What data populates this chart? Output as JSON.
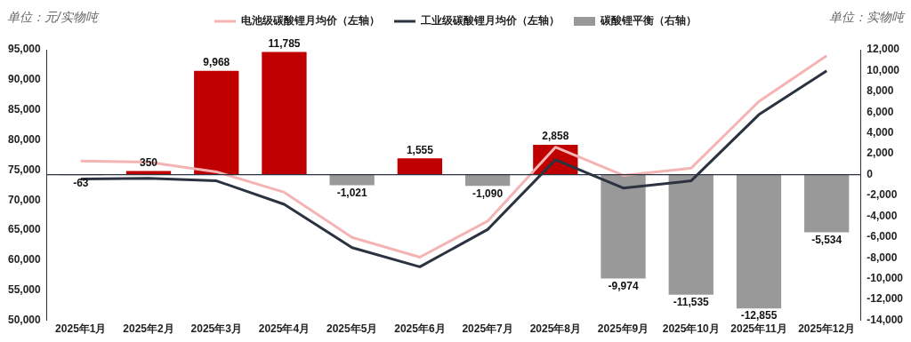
{
  "chart_data": {
    "type": "bar",
    "ylabel": "单位：元/实物吨",
    "y2label": "单位：实物吨",
    "categories": [
      "2025年1月",
      "2025年2月",
      "2025年3月",
      "2025年4月",
      "2025年5月",
      "2025年6月",
      "2025年7月",
      "2025年8月",
      "2025年9月",
      "2025年10月",
      "2025年11月",
      "2025年12月"
    ],
    "series": [
      {
        "name": "电池级碳酸锂月均价（左轴）",
        "type": "line",
        "axis": "y",
        "color": "#f4b4b4",
        "values": [
          76500,
          76300,
          74700,
          71300,
          63800,
          60500,
          66500,
          78800,
          74100,
          75300,
          86400,
          94000
        ]
      },
      {
        "name": "工业级碳酸锂月均价（左轴）",
        "type": "line",
        "axis": "y",
        "color": "#2b3340",
        "values": [
          73500,
          73600,
          73200,
          69300,
          62100,
          58900,
          65100,
          76700,
          72000,
          73200,
          84200,
          91500
        ]
      },
      {
        "name": "碳酸锂平衡（右轴）",
        "axis": "y2",
        "color": "#999999",
        "colors": [
          "#999999",
          "#c00000",
          "#c00000",
          "#c00000",
          "#999999",
          "#c00000",
          "#999999",
          "#c00000",
          "#999999",
          "#999999",
          "#999999",
          "#999999"
        ],
        "values": [
          -63,
          350,
          9968,
          11785,
          -1021,
          1555,
          -1090,
          2858,
          -9974,
          -11535,
          -12855,
          -5534
        ],
        "value_labels": [
          "-63",
          "350",
          "9,968",
          "11,785",
          "-1,021",
          "1,555",
          "-1,090",
          "2,858",
          "-9,974",
          "-11,535",
          "-12,855",
          "-5,534"
        ]
      }
    ],
    "ylim": [
      50000,
      95000
    ],
    "yticks": [
      {
        "value": 50000,
        "label": "50,000"
      },
      {
        "value": 55000,
        "label": "55,000"
      },
      {
        "value": 60000,
        "label": "60,000"
      },
      {
        "value": 65000,
        "label": "65,000"
      },
      {
        "value": 70000,
        "label": "70,000"
      },
      {
        "value": 75000,
        "label": "75,000"
      },
      {
        "value": 80000,
        "label": "80,000"
      },
      {
        "value": 85000,
        "label": "85,000"
      },
      {
        "value": 90000,
        "label": "90,000"
      },
      {
        "value": 95000,
        "label": "95,000"
      }
    ],
    "y2lim": [
      -14000,
      12000
    ],
    "y2ticks": [
      {
        "value": -14000,
        "label": "-14,000"
      },
      {
        "value": -12000,
        "label": "-12,000"
      },
      {
        "value": -10000,
        "label": "-10,000"
      },
      {
        "value": -8000,
        "label": "-8,000"
      },
      {
        "value": -6000,
        "label": "-6,000"
      },
      {
        "value": -4000,
        "label": "-4,000"
      },
      {
        "value": -2000,
        "label": "-2,000"
      },
      0,
      {
        "value": 2000,
        "label": "2,000"
      },
      {
        "value": 4000,
        "label": "4,000"
      },
      {
        "value": 6000,
        "label": "6,000"
      },
      {
        "value": 8000,
        "label": "8,000"
      },
      {
        "value": 10000,
        "label": "10,000"
      },
      {
        "value": 12000,
        "label": "12,000"
      }
    ],
    "ref_lines": [
      {
        "axis": "y2",
        "value": 0,
        "color": "#2b3340"
      }
    ],
    "legend": "top",
    "grid": false
  }
}
